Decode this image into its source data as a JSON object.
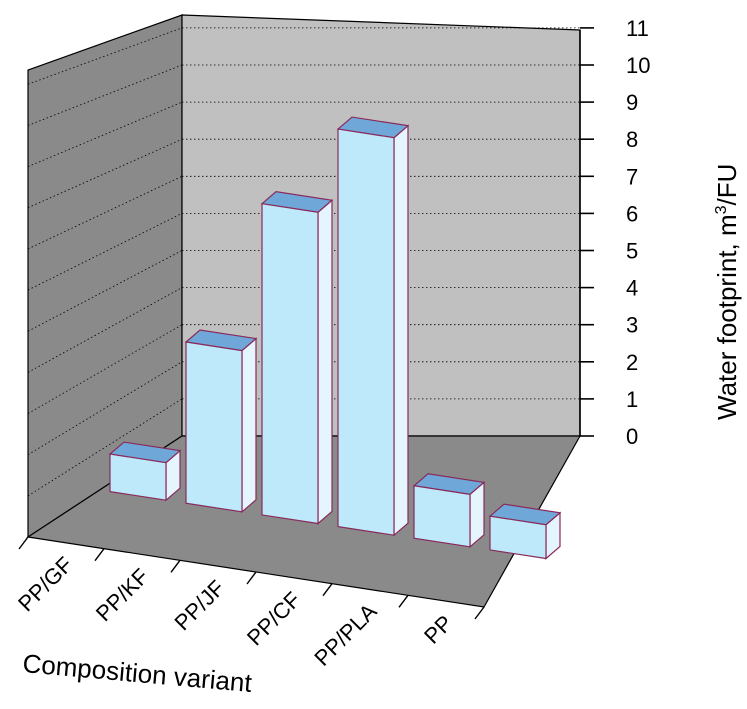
{
  "chart_data": {
    "type": "bar",
    "subtype": "3d-bar",
    "categories": [
      "PP/GF",
      "PP/KF",
      "PP/JF",
      "PP/CF",
      "PP/PLA",
      "PP"
    ],
    "values": [
      1.0,
      4.3,
      8.3,
      10.6,
      1.4,
      0.9
    ],
    "xlabel": "Composition variant",
    "ylabel": "Water footprint, m",
    "ylabel_superscript": "3",
    "ylabel_suffix": "/FU",
    "ylim": [
      0,
      11
    ],
    "yticks": [
      0,
      1,
      2,
      3,
      4,
      5,
      6,
      7,
      8,
      9,
      10,
      11
    ],
    "grid": true,
    "colors": {
      "bar_front": "#bde9fb",
      "bar_top": "#6fa7d8",
      "bar_side": "#e4f5fd",
      "bar_edge": "#8a2a5a",
      "back_wall": "#c0c0c0",
      "left_wall": "#8a8a8a",
      "floor": "#8a8a8a",
      "grid": "#000000"
    }
  }
}
